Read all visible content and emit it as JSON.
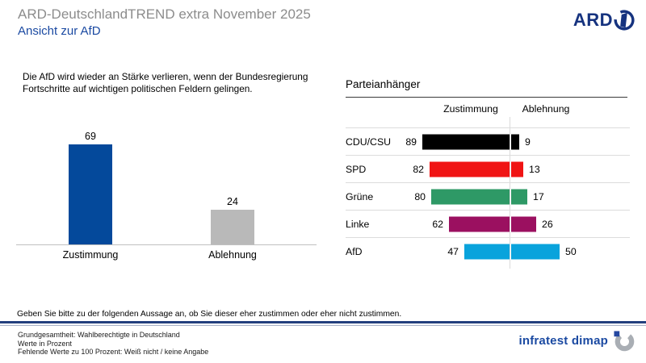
{
  "header": {
    "title": "ARD-DeutschlandTREND extra November 2025",
    "subtitle": "Ansicht zur AfD",
    "title_color": "#8C8C8C",
    "subtitle_color": "#1B4AA2"
  },
  "logos": {
    "ard": "ARD",
    "ard_color": "#16337F",
    "infratest": "infratest dimap",
    "infratest_color": "#1B4AA2"
  },
  "statement": "Die AfD wird wieder an Stärke verlieren, wenn der Bundesregierung Fortschritte auf wichtigen politischen Feldern gelingen.",
  "question": "Geben Sie bitte zu der folgenden Aussage an, ob Sie dieser eher zustimmen oder eher nicht zustimmen.",
  "chart_data": [
    {
      "type": "bar",
      "orientation": "vertical",
      "categories": [
        "Zustimmung",
        "Ablehnung"
      ],
      "values": [
        69,
        24
      ],
      "bar_colors": [
        "#04499B",
        "#B9B9B9"
      ],
      "ylim": [
        0,
        100
      ],
      "value_labels": true,
      "title": "",
      "xlabel": "",
      "ylabel": "",
      "grid": false,
      "legend": false
    },
    {
      "type": "bar",
      "orientation": "horizontal-paired",
      "title": "Parteianhänger",
      "categories": [
        "CDU/CSU",
        "SPD",
        "Grüne",
        "Linke",
        "AfD"
      ],
      "series": [
        {
          "name": "Zustimmung",
          "values": [
            89,
            82,
            80,
            62,
            47
          ]
        },
        {
          "name": "Ablehnung",
          "values": [
            9,
            13,
            17,
            26,
            50
          ]
        }
      ],
      "bar_colors": [
        "#000000",
        "#F01414",
        "#2E9966",
        "#9B1060",
        "#09A3DC"
      ],
      "xlim": [
        0,
        100
      ],
      "value_labels": true,
      "grid": false,
      "legend": "column-headers"
    }
  ],
  "footer": {
    "lines": [
      "Grundgesamtheit: Wahlberechtigte in Deutschland",
      "Werte in Prozent",
      "Fehlende Werte zu 100 Prozent: Weiß nicht / keine Angabe"
    ]
  }
}
